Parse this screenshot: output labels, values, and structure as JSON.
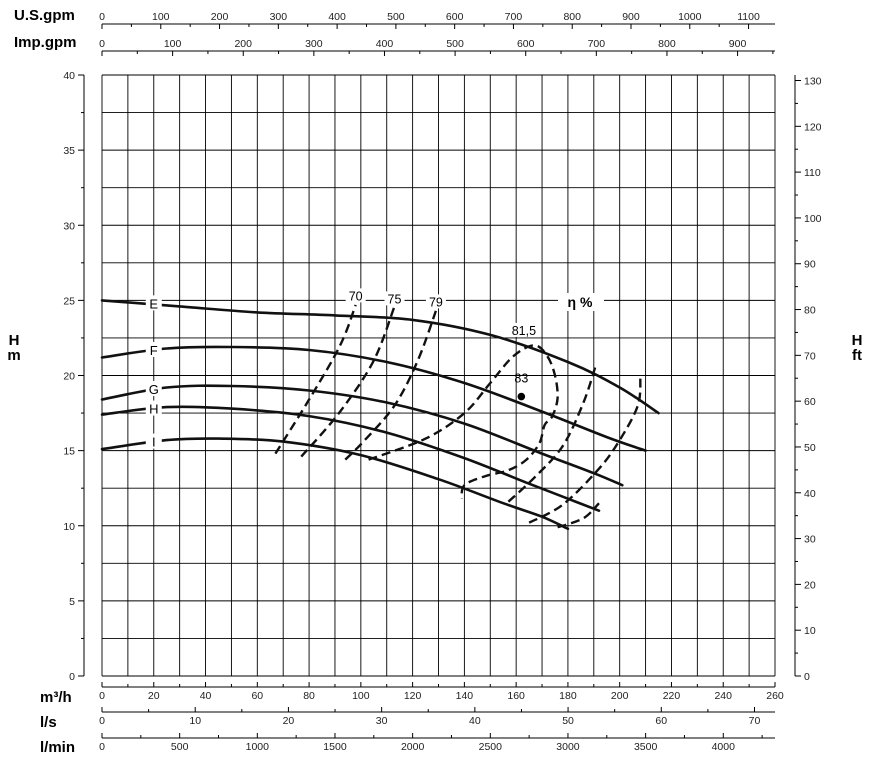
{
  "chart_data": {
    "type": "line",
    "grid": true,
    "left_axis": {
      "label_line1": "H",
      "label_line2": "m",
      "range": [
        0,
        40
      ],
      "ticks": [
        "0",
        "5",
        "10",
        "15",
        "20",
        "25",
        "30",
        "35",
        "40"
      ]
    },
    "right_axis": {
      "label_line1": "H",
      "label_line2": "ft",
      "range": [
        0,
        131.2
      ],
      "ticks": [
        "0",
        "10",
        "20",
        "30",
        "40",
        "50",
        "60",
        "70",
        "80",
        "90",
        "100",
        "110",
        "120",
        "130"
      ]
    },
    "bottom_axes": [
      {
        "unit": "m³/h",
        "range": [
          0,
          260
        ],
        "ticks": [
          "0",
          "20",
          "40",
          "60",
          "80",
          "100",
          "120",
          "140",
          "160",
          "180",
          "200",
          "220",
          "240",
          "260"
        ]
      },
      {
        "unit": "l/s",
        "range": [
          0,
          72.2
        ],
        "ticks": [
          "0",
          "10",
          "20",
          "30",
          "40",
          "50",
          "60",
          "70"
        ]
      },
      {
        "unit": "l/min",
        "range": [
          0,
          4333
        ],
        "ticks": [
          "0",
          "500",
          "1000",
          "1500",
          "2000",
          "2500",
          "3000",
          "3500",
          "4000"
        ]
      }
    ],
    "top_axes": [
      {
        "unit": "U.S.gpm",
        "range": [
          0,
          1145
        ],
        "ticks": [
          "0",
          "100",
          "200",
          "300",
          "400",
          "500",
          "600",
          "700",
          "800",
          "900",
          "1000",
          "1100"
        ]
      },
      {
        "unit": "Imp.gpm",
        "range": [
          0,
          953
        ],
        "ticks": [
          "0",
          "100",
          "200",
          "300",
          "400",
          "500",
          "600",
          "700",
          "800",
          "900"
        ]
      }
    ],
    "series": [
      {
        "name": "E",
        "label_at": [
          20,
          24.8
        ],
        "x": [
          0,
          30,
          60,
          90,
          120,
          150,
          180,
          200,
          215
        ],
        "y": [
          25,
          24.6,
          24.2,
          24,
          23.7,
          22.7,
          20.9,
          19.2,
          17.5
        ]
      },
      {
        "name": "F",
        "label_at": [
          20,
          21.7
        ],
        "x": [
          0,
          25,
          50,
          80,
          110,
          140,
          170,
          195,
          210
        ],
        "y": [
          21.2,
          21.8,
          21.9,
          21.7,
          20.9,
          19.5,
          17.6,
          15.9,
          15
        ]
      },
      {
        "name": "G",
        "label_at": [
          20,
          19.1
        ],
        "x": [
          0,
          25,
          50,
          80,
          110,
          140,
          170,
          190,
          201
        ],
        "y": [
          18.4,
          19.2,
          19.3,
          19.0,
          18.2,
          16.8,
          14.8,
          13.5,
          12.7
        ]
      },
      {
        "name": "H",
        "label_at": [
          20,
          17.8
        ],
        "x": [
          0,
          25,
          50,
          80,
          110,
          140,
          165,
          180,
          192
        ],
        "y": [
          17.4,
          17.9,
          17.8,
          17.3,
          16.2,
          14.5,
          12.8,
          11.8,
          11.0
        ]
      },
      {
        "name": "I",
        "label_at": [
          20,
          15.6
        ],
        "x": [
          0,
          25,
          45,
          70,
          100,
          130,
          155,
          170,
          180
        ],
        "y": [
          15.1,
          15.7,
          15.8,
          15.6,
          14.7,
          13.1,
          11.5,
          10.6,
          9.8
        ]
      }
    ],
    "efficiency": {
      "label": "η %",
      "best_point": {
        "label": "83",
        "x": 162,
        "y": 18.6
      },
      "contours": [
        {
          "label": "70",
          "label_at": [
            98,
            25.2
          ],
          "x": [
            67,
            80,
            92,
            98
          ],
          "y": [
            14.8,
            18.4,
            22.0,
            24.7
          ]
        },
        {
          "label": "75",
          "label_at": [
            113,
            25.0
          ],
          "x": [
            77,
            92,
            105,
            113
          ],
          "y": [
            14.6,
            17.6,
            21.0,
            24.6
          ]
        },
        {
          "label": "79",
          "label_at": [
            129,
            24.8
          ],
          "x": [
            94,
            101,
            113,
            122,
            129
          ],
          "y": [
            14.4,
            15.6,
            18.0,
            21.0,
            24.3
          ]
        },
        {
          "label": "81,5",
          "label_at": [
            163,
            22.9
          ],
          "x": [
            103,
            125,
            140,
            150,
            159,
            167,
            172,
            175,
            176,
            174,
            171,
            169,
            164,
            157,
            148,
            140,
            139
          ],
          "y": [
            14.4,
            15.8,
            17.5,
            19.5,
            21.3,
            22.0,
            21.3,
            20.0,
            18.5,
            17.3,
            16.7,
            15.5,
            14.4,
            13.7,
            13.3,
            12.7,
            11.8
          ]
        },
        {
          "label": "",
          "x": [
            157,
            167,
            178,
            186,
            191
          ],
          "y": [
            11.6,
            13.2,
            15.3,
            18.2,
            20.8
          ]
        },
        {
          "label": "",
          "x": [
            165,
            178,
            192,
            200,
            207,
            208
          ],
          "y": [
            10.2,
            11.4,
            13.8,
            15.7,
            18.0,
            19.8
          ]
        },
        {
          "label": "",
          "x": [
            176,
            186,
            192
          ],
          "y": [
            9.9,
            10.5,
            11.5
          ]
        }
      ]
    }
  }
}
